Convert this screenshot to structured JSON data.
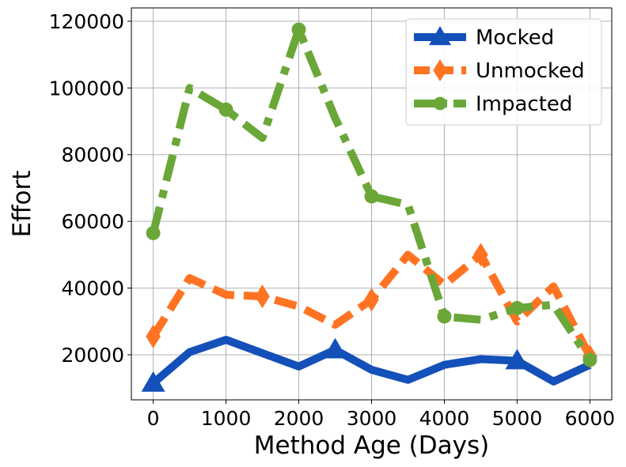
{
  "chart_data": {
    "type": "line",
    "title": "",
    "xlabel": "Method Age (Days)",
    "ylabel": "Effort",
    "xlim": [
      -300,
      6300
    ],
    "ylim": [
      6500,
      124000
    ],
    "xticks": [
      0,
      1000,
      2000,
      3000,
      4000,
      5000,
      6000
    ],
    "yticks": [
      20000,
      40000,
      60000,
      80000,
      100000,
      120000
    ],
    "grid": true,
    "legend_position": "top-right",
    "series": [
      {
        "name": "Mocked",
        "color": "#1450b9",
        "line_style": "solid",
        "marker": "triangle",
        "x": [
          0,
          500,
          1000,
          1500,
          2000,
          2500,
          3000,
          3500,
          4000,
          4500,
          5000,
          5500,
          6000
        ],
        "y": [
          11500,
          20800,
          24500,
          20500,
          16500,
          21500,
          15500,
          12500,
          17000,
          18700,
          18200,
          12000,
          17000
        ],
        "marker_x": [
          0,
          2500,
          5000
        ]
      },
      {
        "name": "Unmocked",
        "color": "#ff7322",
        "line_style": "dashed",
        "marker": "diamond",
        "x": [
          0,
          500,
          1000,
          1500,
          2000,
          2500,
          3000,
          3500,
          4000,
          4500,
          5000,
          5500,
          6000
        ],
        "y": [
          25500,
          43000,
          38000,
          37500,
          34500,
          29000,
          36500,
          50000,
          41000,
          50000,
          30000,
          40500,
          19500
        ],
        "marker_x": [
          0,
          1500,
          3000,
          4500,
          6000
        ]
      },
      {
        "name": "Impacted",
        "color": "#6aa738",
        "line_style": "dashdot",
        "marker": "circle",
        "x": [
          0,
          500,
          1000,
          1500,
          2000,
          2500,
          3000,
          3500,
          4000,
          4500,
          5000,
          5500,
          6000
        ],
        "y": [
          56500,
          100000,
          93500,
          85000,
          117500,
          91000,
          67500,
          65000,
          31500,
          30500,
          34000,
          35000,
          18500
        ],
        "marker_x": [
          0,
          1000,
          2000,
          3000,
          4000,
          5000,
          6000
        ]
      }
    ]
  }
}
